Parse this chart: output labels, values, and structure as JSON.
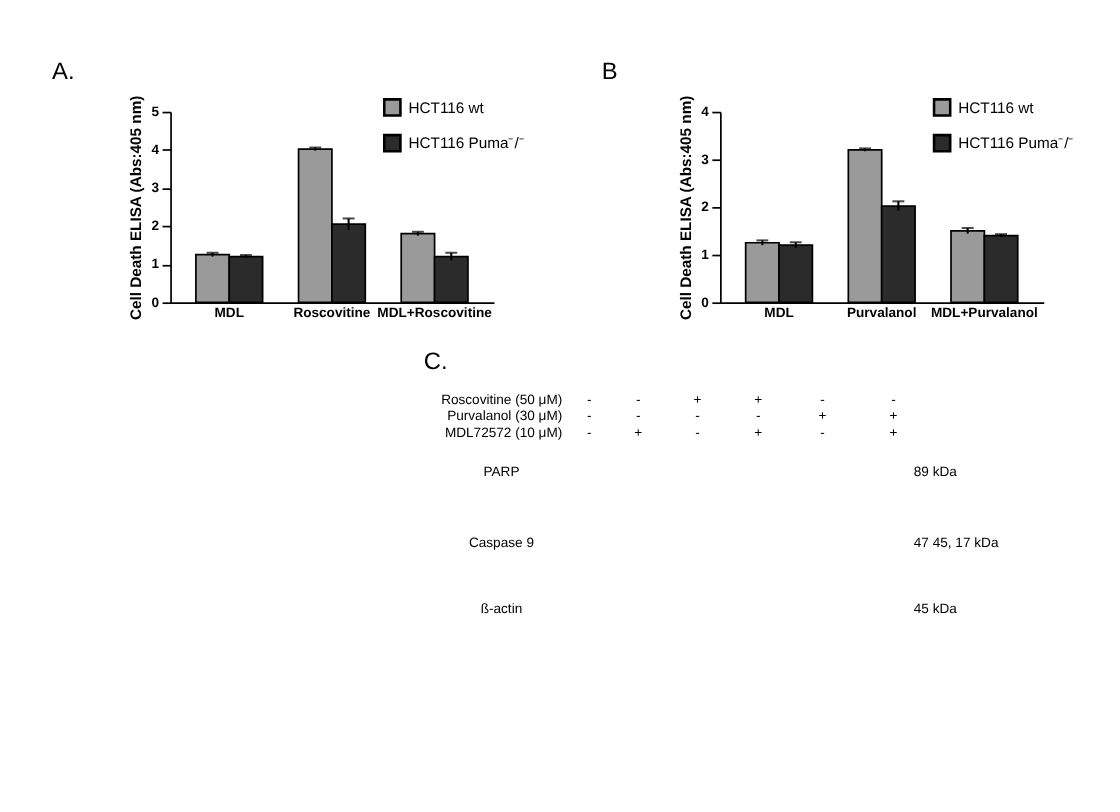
{
  "chart_data": [
    {
      "type": "bar",
      "title": "A.",
      "ylabel": "Cell Death ELISA (Abs:405 nm)",
      "categories": [
        "MDL",
        "Roscovitine",
        "MDL+Roscovitine"
      ],
      "ylim": [
        0,
        5
      ],
      "yticks": [
        0,
        1,
        2,
        3,
        4,
        5
      ],
      "grid": false,
      "legend": "right",
      "series": [
        {
          "name": "HCT116 wt",
          "color": "#9a9a9a",
          "values": [
            1.25,
            4.02,
            1.8
          ],
          "errors": [
            0.05,
            0.04,
            0.05
          ]
        },
        {
          "name": "HCT116 Puma⁻/⁻",
          "color": "#2b2b2b",
          "values": [
            1.2,
            2.05,
            1.2
          ],
          "errors": [
            0.04,
            0.15,
            0.1
          ]
        }
      ]
    },
    {
      "type": "bar",
      "title": "B",
      "ylabel": "Cell Death ELISA (Abs:405 nm)",
      "categories": [
        "MDL",
        "Purvalanol",
        "MDL+Purvalanol"
      ],
      "ylim": [
        0,
        4
      ],
      "yticks": [
        0,
        1,
        2,
        3,
        4
      ],
      "grid": false,
      "legend": "right",
      "series": [
        {
          "name": "HCT116 wt",
          "color": "#9a9a9a",
          "values": [
            1.25,
            3.2,
            1.5
          ],
          "errors": [
            0.05,
            0.03,
            0.06
          ]
        },
        {
          "name": "HCT116 Puma⁻/⁻",
          "color": "#2b2b2b",
          "values": [
            1.2,
            2.02,
            1.4
          ],
          "errors": [
            0.06,
            0.1,
            0.03
          ]
        }
      ]
    },
    {
      "type": "other",
      "title": "C.",
      "annotations": [
        "Roscovitine (50 μM)",
        "Purvalanol (30 μM)",
        "MDL72572 (10 μM)",
        "-",
        "-",
        "+",
        "+",
        "-",
        "-",
        "-",
        "-",
        "-",
        "-",
        "+",
        "+",
        "-",
        "+",
        "-",
        "+",
        "-",
        "+",
        "PARP",
        "Caspase 9",
        "ß-actin",
        "89 kDa",
        "47 45, 17 kDa",
        "45 kDa"
      ]
    }
  ]
}
